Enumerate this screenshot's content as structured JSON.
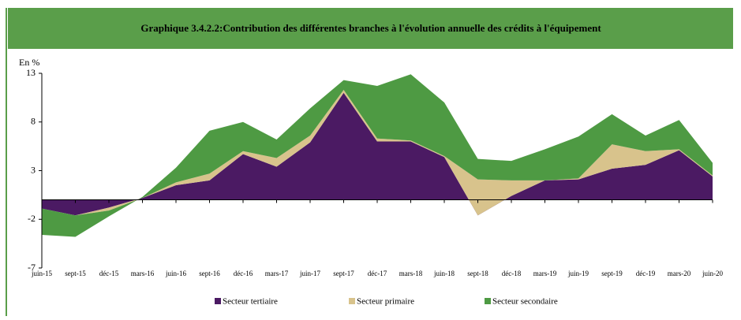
{
  "chart_data": {
    "type": "stacked_area",
    "title": "Graphique 3.4.2.2:Contribution des différentes branches à l'évolution  annuelle des crédits à l'équipement",
    "ylabel": "En %",
    "categories": [
      "juin-15",
      "sept-15",
      "déc-15",
      "mars-16",
      "juin-16",
      "sept-16",
      "déc-16",
      "mars-17",
      "juin-17",
      "sept-17",
      "déc-17",
      "mars-18",
      "juin-18",
      "sept-18",
      "déc-18",
      "mars-19",
      "juin-19",
      "sept-19",
      "déc-19",
      "mars-20",
      "juin-20"
    ],
    "series": [
      {
        "name": "Secteur tertiaire",
        "color": "#4b1a63",
        "values": [
          -0.9,
          -1.6,
          -0.8,
          0.2,
          1.5,
          2.0,
          4.7,
          3.4,
          5.9,
          11.0,
          6.0,
          6.0,
          4.4,
          -1.6,
          0.4,
          2.0,
          2.1,
          3.2,
          3.6,
          5.1,
          2.4
        ]
      },
      {
        "name": "Secteur primaire",
        "color": "#d8c38c",
        "values": [
          0,
          0,
          -0.3,
          0,
          0.3,
          0.7,
          0.3,
          0.9,
          0.7,
          0.3,
          0.3,
          0.1,
          0.1,
          3.7,
          1.6,
          0,
          0.1,
          2.5,
          1.4,
          0.1,
          0.1
        ]
      },
      {
        "name": "Secteur secondaire",
        "color": "#4e9a43",
        "values": [
          -2.7,
          -2.2,
          -0.6,
          0.1,
          1.5,
          4.4,
          3.0,
          1.9,
          2.8,
          1.0,
          5.4,
          6.8,
          5.5,
          2.1,
          2.0,
          3.2,
          4.3,
          3.1,
          1.6,
          3.0,
          1.3
        ]
      }
    ],
    "ylim": [
      -7,
      13
    ],
    "yticks": [
      -7,
      -2,
      3,
      8,
      13
    ],
    "legend": "bottom"
  }
}
